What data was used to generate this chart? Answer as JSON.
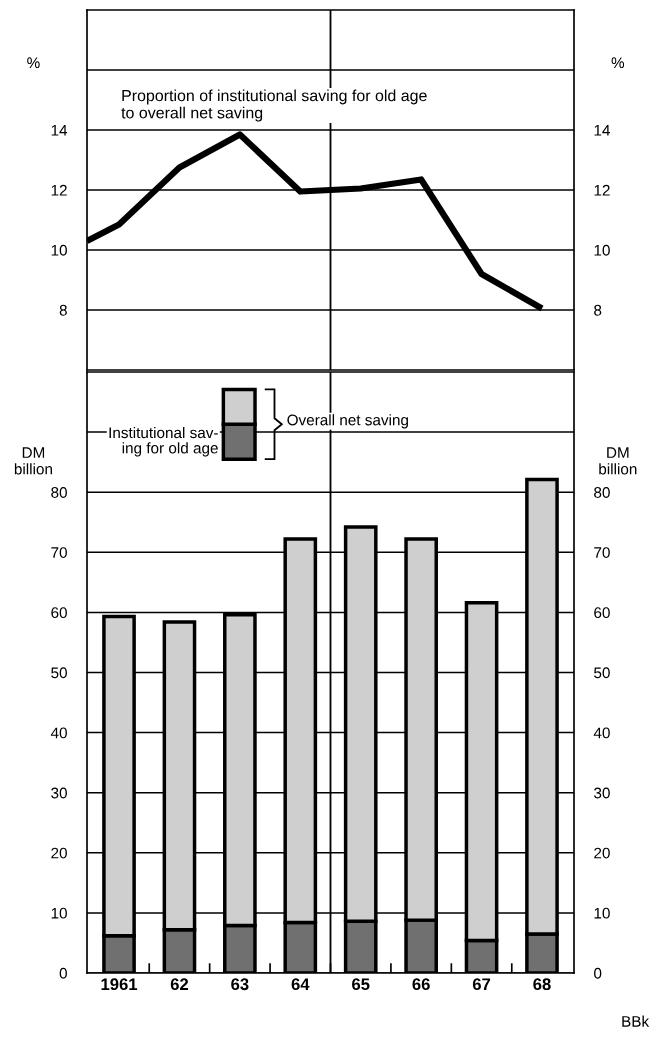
{
  "chart_data": [
    {
      "type": "line",
      "title": "Proportion of institutional saving for old age\nto overall net saving",
      "ylabel": "%",
      "y2label": "%",
      "x": [
        1960.47,
        1961,
        1962,
        1963,
        1964,
        1965,
        1966,
        1967,
        1968
      ],
      "series": [
        {
          "color": "#000000",
          "values": [
            10.3,
            10.85,
            12.75,
            13.85,
            11.95,
            12.05,
            12.35,
            9.2,
            8.05
          ]
        }
      ],
      "xlim": [
        1960.47,
        1968.53
      ],
      "ylim": [
        6,
        18
      ],
      "yticks": [
        8,
        10,
        12,
        14,
        {
          "value": 16,
          "label": null
        }
      ],
      "y2lim": [
        6,
        18
      ],
      "y2ticks": [
        8,
        10,
        12,
        14
      ],
      "tick_labels": "y",
      "grid": "y",
      "marker": "none",
      "line_style": "solid",
      "ref_lines": [
        {
          "axis": "x",
          "value": 1964.5,
          "color": "#000000"
        }
      ]
    },
    {
      "type": "bar",
      "stacked": true,
      "ylabel": "DM\nbillion",
      "y2label": "DM\nbillion",
      "legend_title": "Overall net saving",
      "x": [
        1961,
        1962,
        1963,
        1964,
        1965,
        1966,
        1967,
        1968
      ],
      "series": [
        {
          "name": "Institutional sav-\ning for old age",
          "color": "#707070",
          "values": [
            6.2,
            7.2,
            7.9,
            8.4,
            8.6,
            8.8,
            5.4,
            6.5
          ]
        },
        {
          "color": "#cfcfcf",
          "values": [
            53.1,
            51.2,
            51.7,
            63.8,
            65.6,
            63.4,
            56.2,
            75.6
          ]
        }
      ],
      "xlim": [
        1960.47,
        1968.53
      ],
      "xticks": [
        {
          "value": 1961,
          "label": "1961"
        },
        {
          "value": 1961.5,
          "label": null
        },
        {
          "value": 1962,
          "label": "62"
        },
        {
          "value": 1962.5,
          "label": null
        },
        {
          "value": 1963,
          "label": "63"
        },
        {
          "value": 1963.5,
          "label": null
        },
        {
          "value": 1964,
          "label": "64"
        },
        {
          "value": 1964.5,
          "label": null
        },
        {
          "value": 1965,
          "label": "65"
        },
        {
          "value": 1965.5,
          "label": null
        },
        {
          "value": 1966,
          "label": "66"
        },
        {
          "value": 1966.5,
          "label": null
        },
        {
          "value": 1967,
          "label": "67"
        },
        {
          "value": 1967.5,
          "label": null
        },
        {
          "value": 1968,
          "label": "68"
        }
      ],
      "ylim": [
        0,
        100
      ],
      "yticks": [
        0,
        10,
        20,
        30,
        40,
        50,
        60,
        70,
        80,
        {
          "value": 90,
          "label": null
        }
      ],
      "y2lim": [
        0,
        100
      ],
      "y2ticks": [
        0,
        10,
        20,
        30,
        40,
        50,
        60,
        70,
        80
      ],
      "grid": "y",
      "legend": "top left",
      "ref_lines": [
        {
          "axis": "x",
          "value": 1964.5,
          "color": "#000000"
        }
      ],
      "annotations": [
        "BBk"
      ]
    }
  ]
}
